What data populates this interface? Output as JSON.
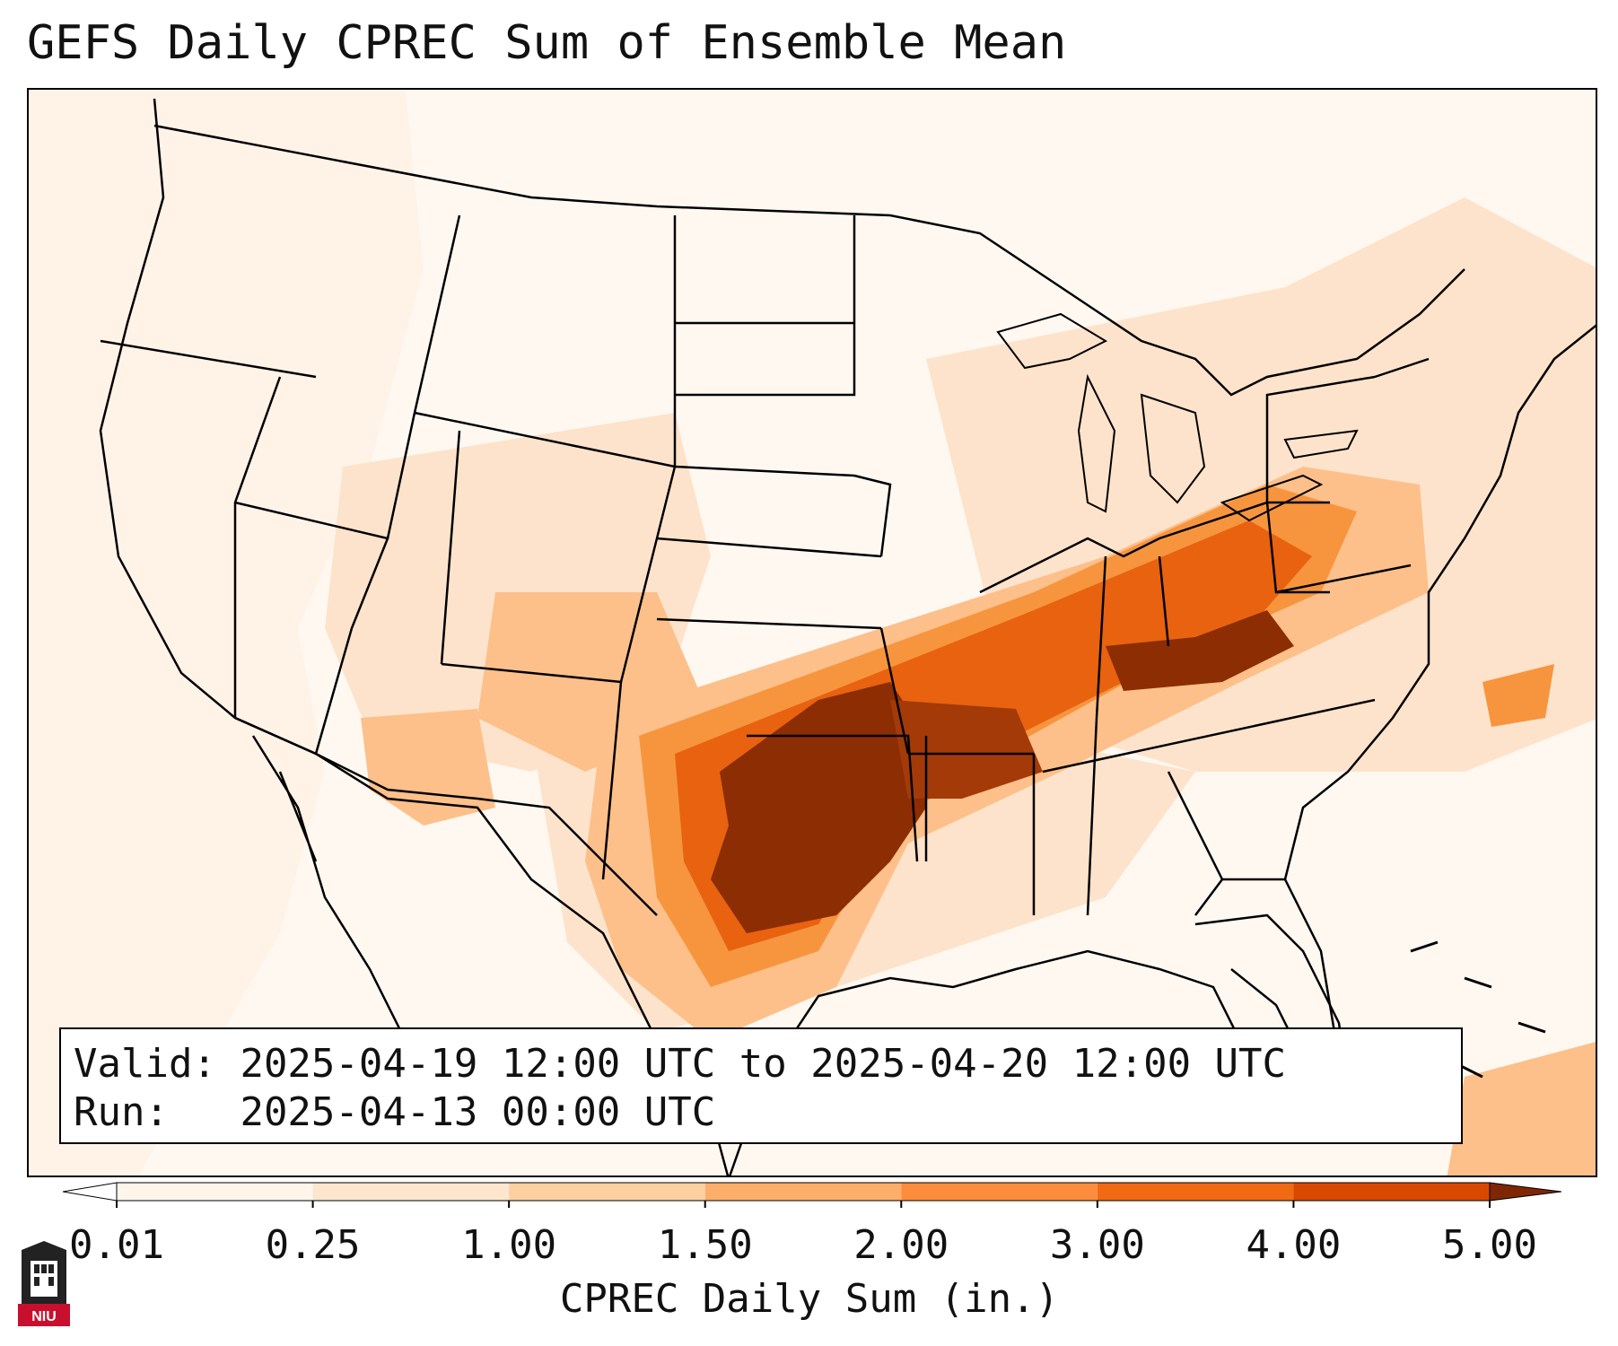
{
  "title": "GEFS Daily CPREC Sum of Ensemble Mean",
  "info": {
    "valid_label": "Valid:",
    "valid_value": "2025-04-19 12:00 UTC to 2025-04-20 12:00 UTC",
    "run_label": "Run:",
    "run_value": "2025-04-13 00:00 UTC"
  },
  "colorbar": {
    "title": "CPREC Daily Sum (in.)",
    "ticks": [
      "0.01",
      "0.25",
      "1.00",
      "1.50",
      "2.00",
      "3.00",
      "4.00",
      "5.00"
    ],
    "colors": [
      "#fff5eb",
      "#fee6ce",
      "#fdd0a2",
      "#fdae6b",
      "#fd8d3c",
      "#f16913",
      "#d94801",
      "#8c2d04"
    ],
    "under_color": "#ffffff",
    "over_color": "#7f2704"
  },
  "logo": {
    "text": "NIU",
    "color": "#c8102e"
  },
  "map": {
    "region": "Contiguous United States",
    "max_area": "Oklahoma / North Texas to Kentucky",
    "fill_colors": {
      "light": "#fff0e2",
      "low": "#fde0c5",
      "mid": "#fdc08a",
      "high": "#f7953f",
      "higher": "#e8620f",
      "max": "#8c2d04"
    }
  }
}
